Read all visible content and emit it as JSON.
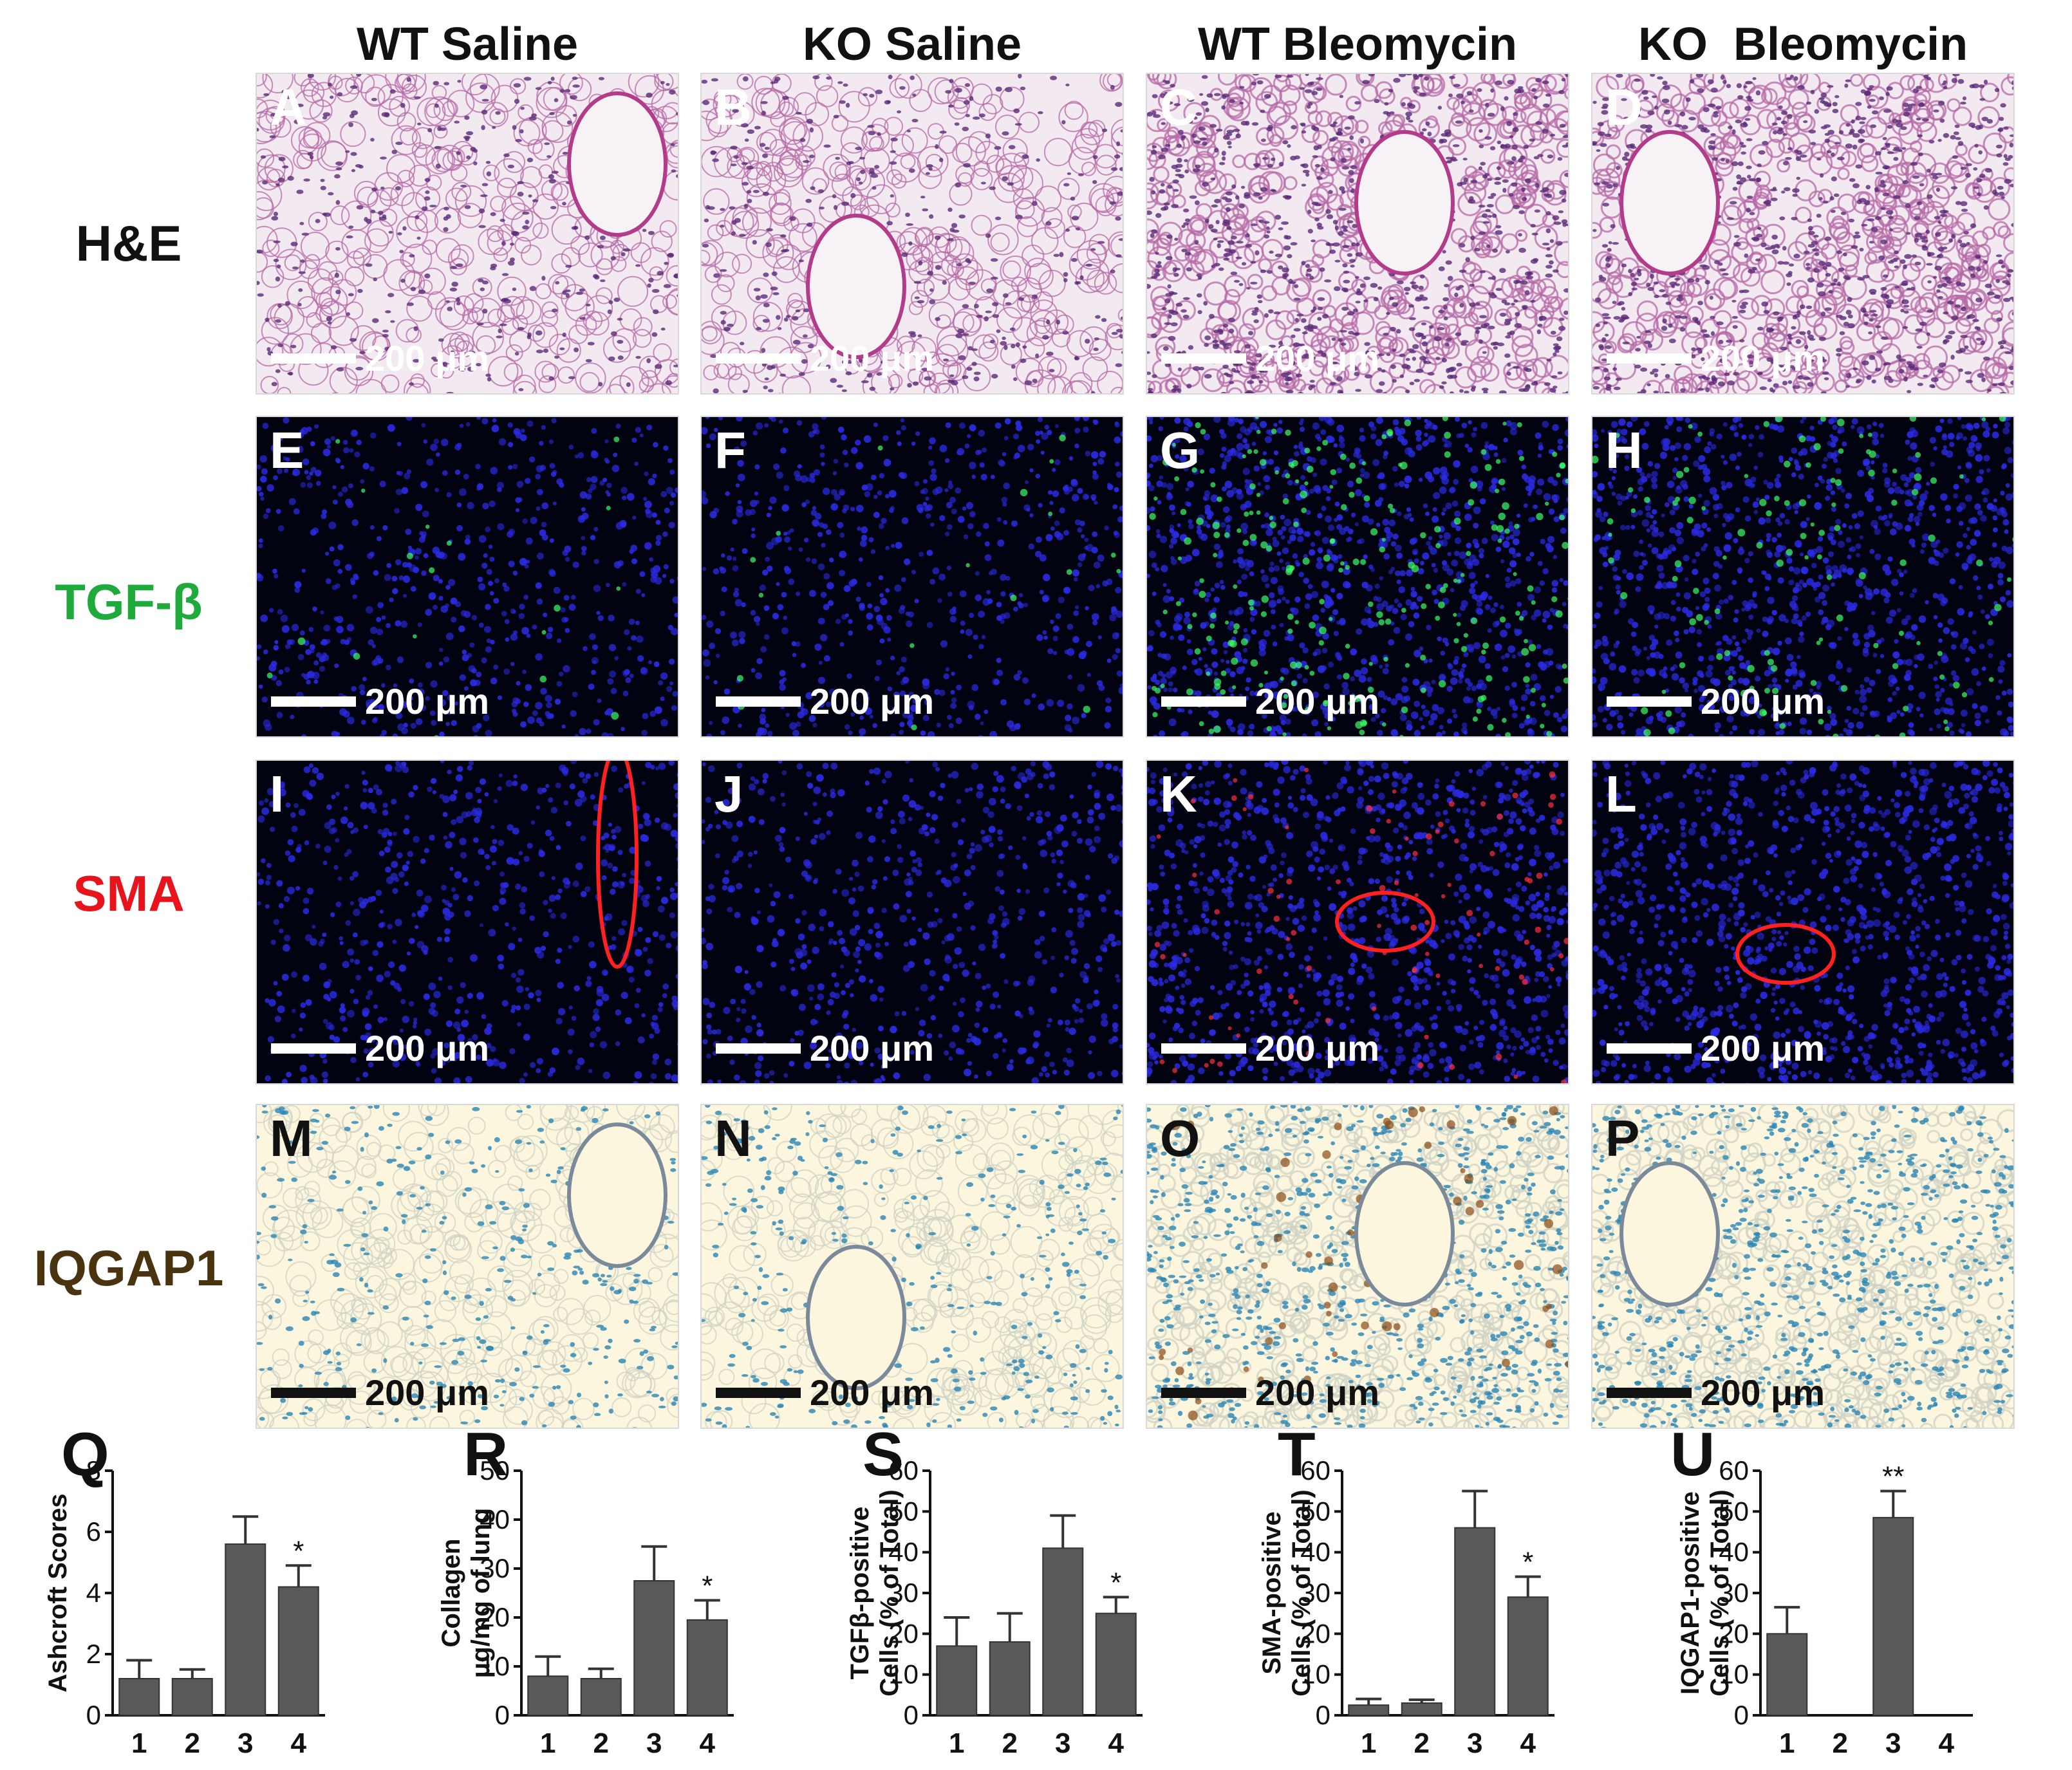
{
  "columns": [
    "WT Saline",
    "KO Saline",
    "WT Bleomycin",
    "KO  Bleomycin"
  ],
  "rows": [
    {
      "label": "H&E",
      "color": "#111111",
      "tissue": "he",
      "panels": [
        "A",
        "B",
        "C",
        "D"
      ]
    },
    {
      "label": "TGF-β",
      "color": "#1faa3c",
      "tissue": "if-green",
      "panels": [
        "E",
        "F",
        "G",
        "H"
      ]
    },
    {
      "label": "SMA",
      "color": "#e8141c",
      "tissue": "if-red",
      "panels": [
        "I",
        "J",
        "K",
        "L"
      ]
    },
    {
      "label": "IQGAP1",
      "color": "#4a3410",
      "tissue": "ihc",
      "panels": [
        "M",
        "N",
        "O",
        "P"
      ]
    }
  ],
  "scale_bar": "200 μm",
  "chart_data": [
    {
      "type": "bar",
      "panel": "Q",
      "categories": [
        "1",
        "2",
        "3",
        "4"
      ],
      "values": [
        1.2,
        1.2,
        5.6,
        4.2
      ],
      "errors": [
        0.6,
        0.3,
        0.9,
        0.7
      ],
      "ylabel": "Ashcroft Scores",
      "ylim": [
        0,
        8
      ],
      "yticks": [
        "0",
        "2",
        "4",
        "6",
        "8"
      ],
      "annotations": [
        "",
        "",
        "",
        "*"
      ]
    },
    {
      "type": "bar",
      "panel": "R",
      "categories": [
        "1",
        "2",
        "3",
        "4"
      ],
      "values": [
        8,
        7.5,
        27.5,
        19.5
      ],
      "errors": [
        4,
        2,
        7,
        4
      ],
      "ylabel": "Collagen\nμg/mg of lung",
      "ylim": [
        0,
        50
      ],
      "yticks": [
        "0",
        "10",
        "20",
        "30",
        "40",
        "50"
      ],
      "annotations": [
        "",
        "",
        "",
        "*"
      ]
    },
    {
      "type": "bar",
      "panel": "S",
      "categories": [
        "1",
        "2",
        "3",
        "4"
      ],
      "values": [
        17,
        18,
        41,
        25
      ],
      "errors": [
        7,
        7,
        8,
        4
      ],
      "ylabel": "TGFβ-positive\nCells (% of Total)",
      "ylim": [
        0,
        60
      ],
      "yticks": [
        "0",
        "10",
        "20",
        "30",
        "40",
        "50",
        "60"
      ],
      "annotations": [
        "",
        "",
        "",
        "*"
      ]
    },
    {
      "type": "bar",
      "panel": "T",
      "categories": [
        "1",
        "2",
        "3",
        "4"
      ],
      "values": [
        2.5,
        3,
        46,
        29
      ],
      "errors": [
        1.5,
        0.8,
        9,
        5
      ],
      "ylabel": "SMA-positive\nCells (% of Total)",
      "ylim": [
        0,
        60
      ],
      "yticks": [
        "0",
        "10",
        "20",
        "30",
        "40",
        "50",
        "60"
      ],
      "annotations": [
        "",
        "",
        "",
        "*"
      ]
    },
    {
      "type": "bar",
      "panel": "U",
      "categories": [
        "1",
        "2",
        "3",
        "4"
      ],
      "values": [
        20,
        0,
        48.5,
        0
      ],
      "errors": [
        6.5,
        0,
        6.5,
        0
      ],
      "ylabel": "IQGAP1-positive\nCells (% of Total)",
      "ylim": [
        0,
        60
      ],
      "yticks": [
        "0",
        "10",
        "20",
        "30",
        "40",
        "50",
        "60"
      ],
      "annotations": [
        "",
        "",
        "**",
        ""
      ]
    }
  ]
}
